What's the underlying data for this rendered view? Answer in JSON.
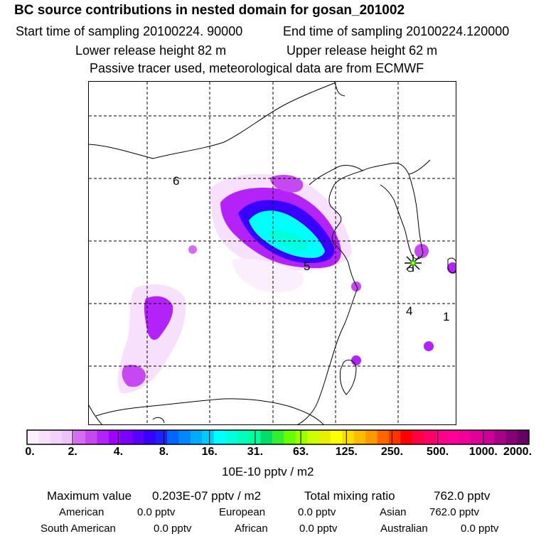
{
  "header": {
    "title": "BC  source contributions in nested domain for gosan_201002",
    "start_time": "Start time of sampling 20100224. 90000",
    "end_time": "End time of sampling 20100224.120000",
    "lower_release": "Lower release height   82 m",
    "upper_release": "Upper release height   62 m",
    "tracer_note": "Passive tracer used, meteorological data are from ECMWF"
  },
  "map": {
    "region_labels": [
      "6",
      "5",
      "4",
      "1"
    ],
    "receptor_marker": "gosan-site-star",
    "colors": {
      "low": "#f3d8f7",
      "mid": "#a400ff",
      "high": "#00ffd8",
      "marker_green": "#00cc00",
      "marker_yellow": "#ffff00"
    }
  },
  "colorbar": {
    "ticks": [
      "0.",
      "2.",
      "4.",
      "8.",
      "16.",
      "31.",
      "63.",
      "125.",
      "250.",
      "500.",
      "1000.",
      "2000."
    ],
    "colors": [
      "#fbeefd",
      "#f7e0fb",
      "#f3d1f9",
      "#efc3f7",
      "#d66cf3",
      "#c648f1",
      "#b322f6",
      "#9f00ff",
      "#7c00ff",
      "#5a00ff",
      "#3a00ff",
      "#1f1fff",
      "#0066ff",
      "#0088ff",
      "#00aaff",
      "#00cdff",
      "#00ffff",
      "#00ffdd",
      "#00ffbb",
      "#00ff99",
      "#00dd66",
      "#33ee33",
      "#66ff00",
      "#99ff00",
      "#ccff00",
      "#e6f000",
      "#ffff00",
      "#ffdd00",
      "#ffbb00",
      "#ff9900",
      "#ff6600",
      "#ff3300",
      "#ff0000",
      "#ff0044",
      "#ff0066",
      "#ff0088",
      "#ff0099",
      "#ee0099",
      "#dd0099",
      "#cc0099",
      "#aa0088",
      "#880077",
      "#660066"
    ]
  },
  "units": "10E-10 pptv / m2",
  "summary": {
    "max_label": "Maximum value",
    "max_value": "0.203E-07 pptv / m2",
    "total_label": "Total mixing ratio",
    "total_value": "762.0 pptv",
    "regions": [
      {
        "name": "American",
        "value": "0.0 pptv"
      },
      {
        "name": "European",
        "value": "0.0 pptv"
      },
      {
        "name": "Asian",
        "value": "762.0 pptv"
      },
      {
        "name": "South American",
        "value": "0.0 pptv"
      },
      {
        "name": "African",
        "value": "0.0 pptv"
      },
      {
        "name": "Australian",
        "value": "0.0 pptv"
      }
    ]
  }
}
